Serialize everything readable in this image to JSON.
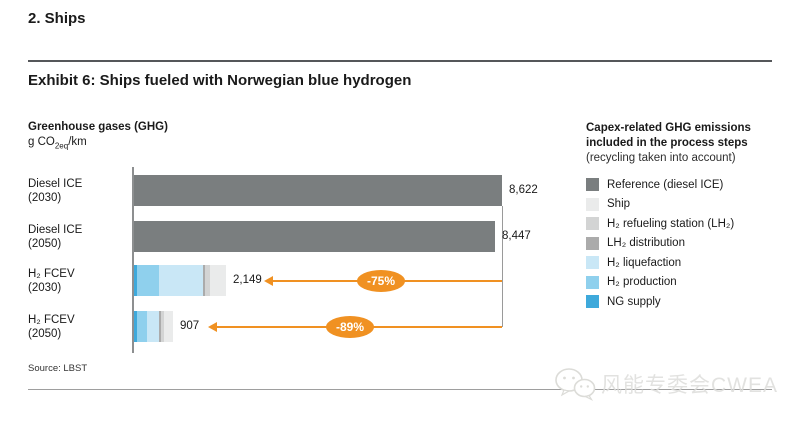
{
  "page": {
    "section_title": "2. Ships",
    "exhibit_title": "Exhibit 6: Ships fueled with Norwegian blue hydrogen",
    "source": "Source: LBST",
    "watermark": "风能专委会CWEA"
  },
  "chart_header": {
    "title": "Greenhouse gases (GHG)",
    "unit_prefix": "g CO",
    "unit_sub": "2eq",
    "unit_suffix": "/km"
  },
  "legend": {
    "title_line1": "Capex-related GHG emissions",
    "title_line2": "included in the process steps",
    "subtitle": "(recycling taken into account)",
    "items": [
      {
        "label": "Reference (diesel ICE)",
        "color": "#7a7e7f"
      },
      {
        "label": "Ship",
        "color": "#eaebeb"
      },
      {
        "label": "H₂ refueling station (LH₂)",
        "color": "#d3d4d4"
      },
      {
        "label": "LH₂ distribution",
        "color": "#ababab"
      },
      {
        "label": "H₂ liquefaction",
        "color": "#c9e7f6"
      },
      {
        "label": "H₂ production",
        "color": "#8fd0ed"
      },
      {
        "label": "NG supply",
        "color": "#3ea9db"
      }
    ]
  },
  "chart_data": {
    "type": "bar",
    "orientation": "horizontal",
    "title": "Greenhouse gases (GHG)",
    "xlabel": "g CO2eq/km",
    "xlim": [
      0,
      9000
    ],
    "grid": false,
    "legend_position": "right",
    "categories": [
      "Diesel ICE (2030)",
      "Diesel ICE (2050)",
      "H₂ FCEV (2030)",
      "H₂ FCEV (2050)"
    ],
    "category_lines": [
      [
        "Diesel ICE",
        "(2030)"
      ],
      [
        "Diesel ICE",
        "(2050)"
      ],
      [
        "H₂ FCEV",
        "(2030)"
      ],
      [
        "H₂ FCEV",
        "(2050)"
      ]
    ],
    "totals": [
      8622,
      8447,
      2149,
      907
    ],
    "total_labels": [
      "8,622",
      "8,447",
      "2,149",
      "907"
    ],
    "series": [
      {
        "name": "Reference (diesel ICE)",
        "color": "#7a7e7f",
        "values": [
          8622,
          8447,
          0,
          0
        ]
      },
      {
        "name": "NG supply",
        "color": "#3ea9db",
        "values": [
          0,
          0,
          70,
          65
        ]
      },
      {
        "name": "H₂ production",
        "color": "#8fd0ed",
        "values": [
          0,
          0,
          515,
          235
        ]
      },
      {
        "name": "H₂ liquefaction",
        "color": "#c9e7f6",
        "values": [
          0,
          0,
          1030,
          280
        ]
      },
      {
        "name": "LH₂ distribution",
        "color": "#ababab",
        "values": [
          0,
          0,
          45,
          45
        ]
      },
      {
        "name": "H₂ refueling station (LH₂)",
        "color": "#d3d4d4",
        "values": [
          0,
          0,
          115,
          70
        ]
      },
      {
        "name": "Ship",
        "color": "#eaebeb",
        "values": [
          0,
          0,
          374,
          212
        ]
      }
    ],
    "annotations": [
      {
        "label": "-75%",
        "row": 2,
        "meaning": "reduction vs Diesel ICE 2030"
      },
      {
        "label": "-89%",
        "row": 3,
        "meaning": "reduction vs Diesel ICE 2030"
      }
    ]
  }
}
